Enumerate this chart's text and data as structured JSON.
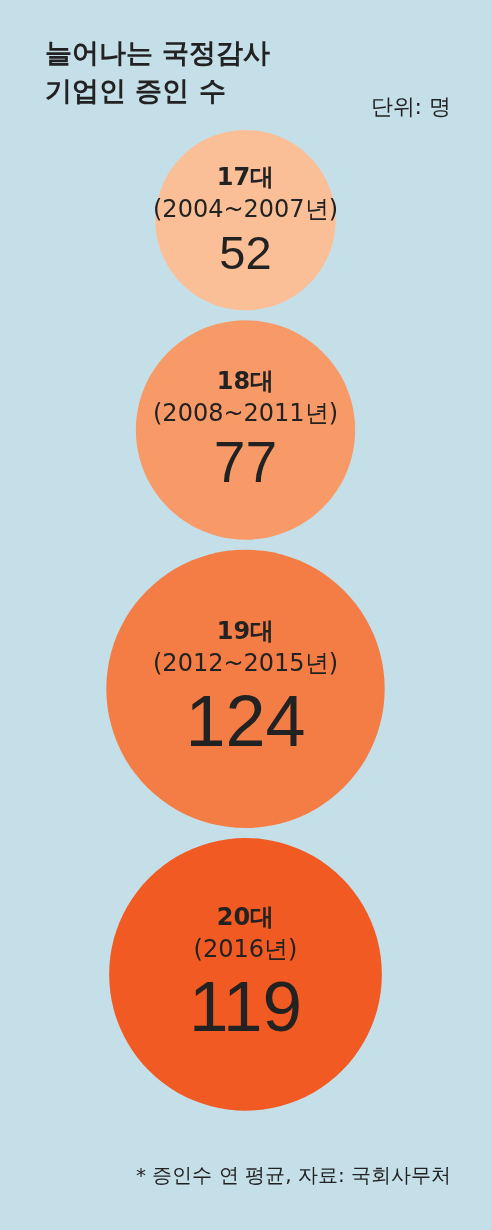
{
  "chart_data": {
    "type": "other",
    "title": "늘어나는 국정감사 기업인 증인 수",
    "subtitle": "단위: 명",
    "categories": [
      "17대\n(2004~2007년)",
      "18대\n(2008~2011년)",
      "19대\n(2012~2015년)",
      "20대\n(2016년)"
    ],
    "values": [
      52,
      77,
      124,
      119
    ],
    "data_labels": true,
    "colors": [
      "#fbbf98",
      "#f89a68",
      "#f47d45",
      "#f15a22"
    ],
    "annotations": [
      "* 증인수 연 평균, 자료: 국회사무처"
    ]
  }
}
